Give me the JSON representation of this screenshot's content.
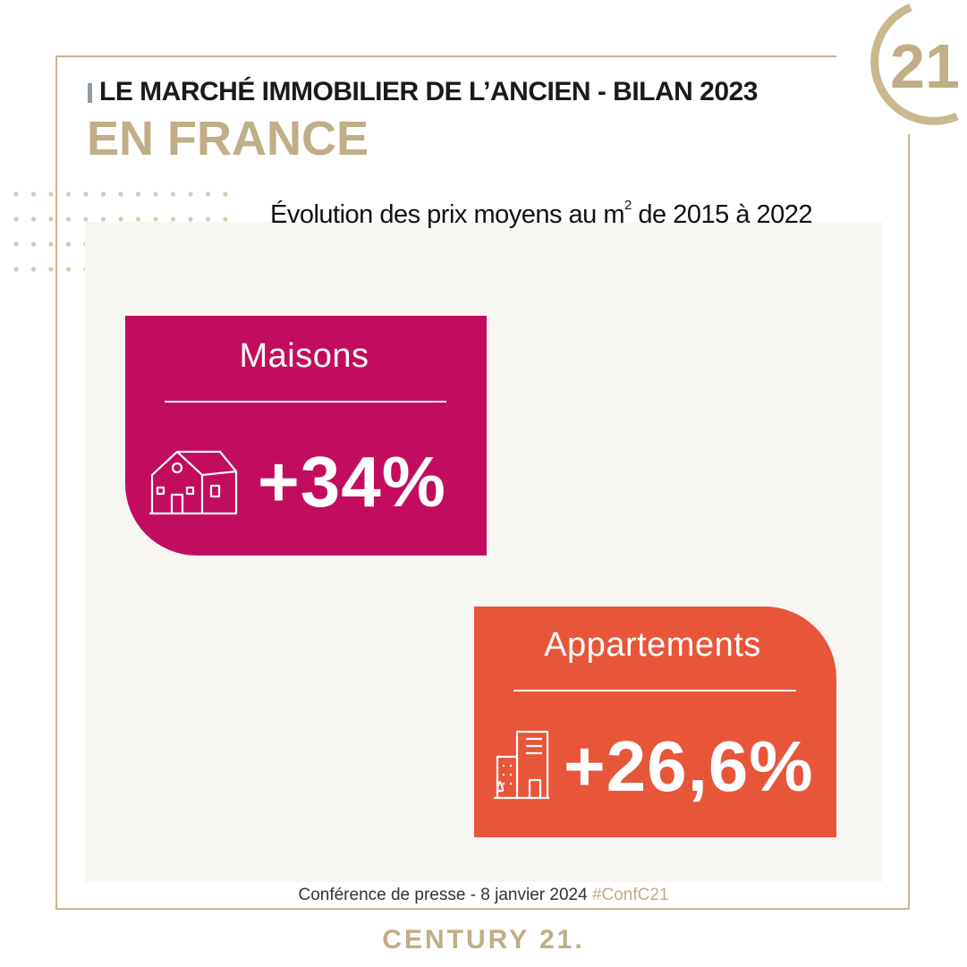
{
  "header": {
    "line1": "LE MARCHÉ IMMOBILIER DE L’ANCIEN - BILAN 2023",
    "line2": "EN FRANCE"
  },
  "logo": {
    "text": "21"
  },
  "subtitle": {
    "prefix": "Évolution des prix moyens au m",
    "superscript": "2",
    "suffix": " de 2015 à 2022"
  },
  "cards": {
    "maisons": {
      "label": "Maisons",
      "value": "+34%",
      "icon": "house-icon",
      "color": "#c20d5e"
    },
    "appartements": {
      "label": "Appartements",
      "value": "+26,6%",
      "icon": "building-icon",
      "color": "#e8563a"
    }
  },
  "footer": {
    "text": "Conférence de presse - 8 janvier 2024 ",
    "hashtag": "#ConfC21"
  },
  "brand": {
    "name": "CENTURY 21."
  },
  "colors": {
    "gold": "#bfae86",
    "frame": "#c9b88e",
    "panel": "#f7f6f3"
  }
}
